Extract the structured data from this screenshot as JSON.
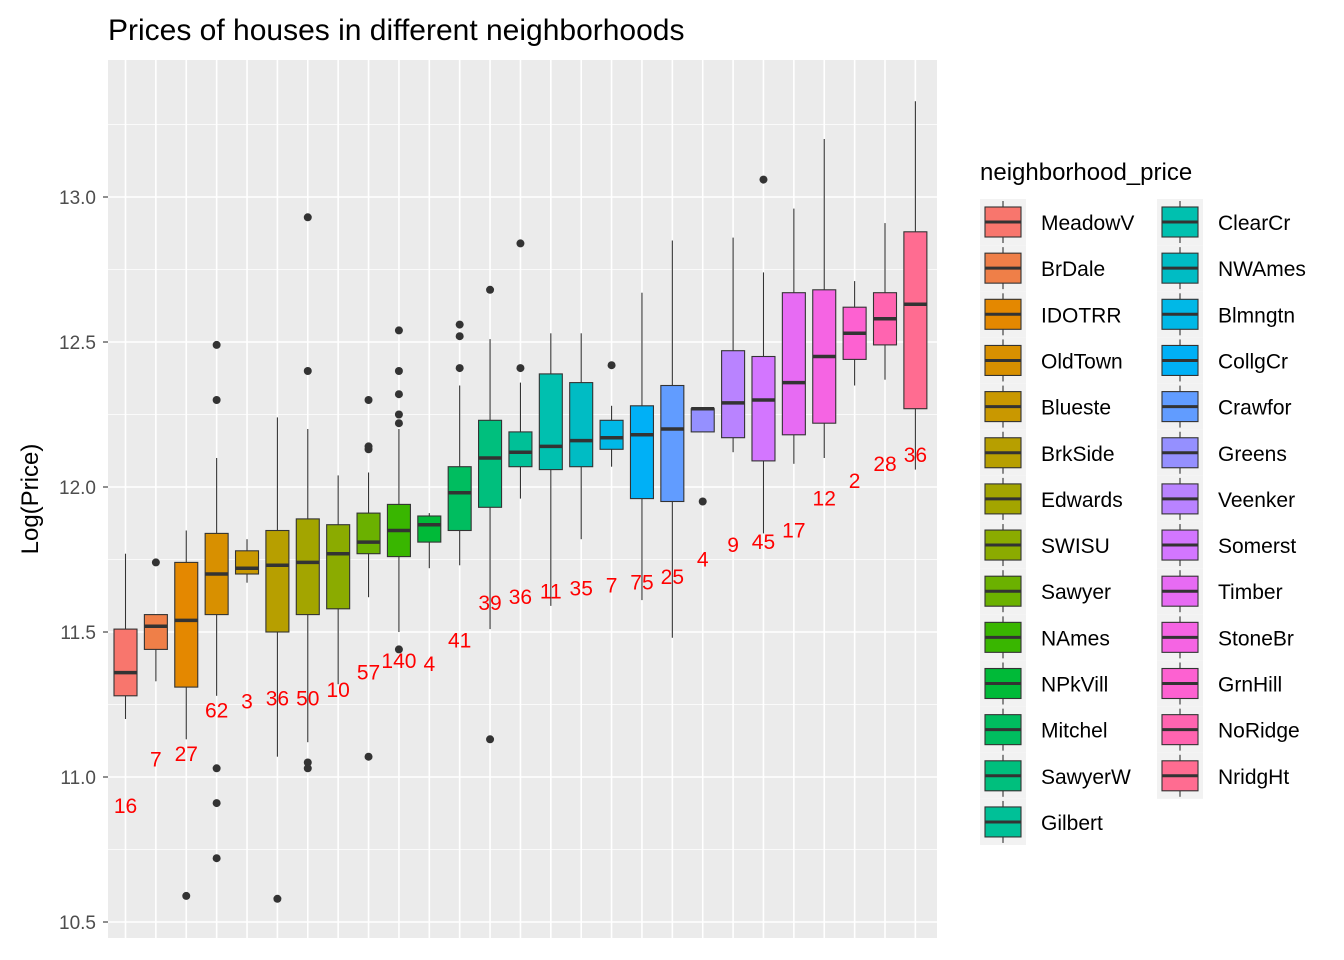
{
  "chart_data": {
    "type": "boxplot",
    "title": "Prices of houses in different neighborhoods",
    "xlabel": "",
    "ylabel": "Log(Price)",
    "ylim": [
      10.47,
      13.45
    ],
    "yticks": [
      "10.5",
      "11.0",
      "11.5",
      "12.0",
      "12.5",
      "13.0"
    ],
    "grid": true,
    "legend": {
      "title": "neighborhood_price",
      "position": "right",
      "columns": 2
    },
    "categories": [
      {
        "name": "MeadowV",
        "color": "#F8766D",
        "count": "16",
        "q1": 11.28,
        "median": 11.36,
        "q3": 11.51,
        "lower": 11.2,
        "upper": 11.77,
        "outliers": []
      },
      {
        "name": "BrDale",
        "color": "#EF7F48",
        "count": "7",
        "q1": 11.44,
        "median": 11.52,
        "q3": 11.56,
        "lower": 11.33,
        "upper": 11.56,
        "outliers": [
          11.74
        ]
      },
      {
        "name": "IDOTRR",
        "color": "#E48800",
        "count": "27",
        "q1": 11.31,
        "median": 11.54,
        "q3": 11.74,
        "lower": 11.13,
        "upper": 11.85,
        "outliers": [
          10.59
        ]
      },
      {
        "name": "OldTown",
        "color": "#D89000",
        "count": "62",
        "q1": 11.56,
        "median": 11.7,
        "q3": 11.84,
        "lower": 11.28,
        "upper": 12.1,
        "outliers": [
          12.49,
          12.3,
          11.03,
          10.91,
          10.72
        ]
      },
      {
        "name": "Blueste",
        "color": "#C99800",
        "count": "3",
        "q1": 11.7,
        "median": 11.72,
        "q3": 11.78,
        "lower": 11.67,
        "upper": 11.82,
        "outliers": []
      },
      {
        "name": "BrkSide",
        "color": "#B79F00",
        "count": "36",
        "q1": 11.5,
        "median": 11.73,
        "q3": 11.85,
        "lower": 11.07,
        "upper": 12.24,
        "outliers": [
          10.58
        ]
      },
      {
        "name": "Edwards",
        "color": "#A3A500",
        "count": "50",
        "q1": 11.56,
        "median": 11.74,
        "q3": 11.89,
        "lower": 11.12,
        "upper": 12.2,
        "outliers": [
          12.93,
          12.4,
          11.05,
          11.03
        ]
      },
      {
        "name": "SWISU",
        "color": "#8BAB00",
        "count": "10",
        "q1": 11.58,
        "median": 11.77,
        "q3": 11.87,
        "lower": 11.32,
        "upper": 12.04,
        "outliers": []
      },
      {
        "name": "Sawyer",
        "color": "#6BB100",
        "count": "57",
        "q1": 11.77,
        "median": 11.81,
        "q3": 11.91,
        "lower": 11.62,
        "upper": 12.05,
        "outliers": [
          12.3,
          12.14,
          12.13,
          11.07
        ]
      },
      {
        "name": "NAmes",
        "color": "#39B600",
        "count": "140",
        "q1": 11.76,
        "median": 11.85,
        "q3": 11.94,
        "lower": 11.5,
        "upper": 12.2,
        "outliers": [
          12.54,
          12.4,
          12.32,
          12.25,
          12.22,
          11.44
        ]
      },
      {
        "name": "NPkVill",
        "color": "#00BA38",
        "count": "4",
        "q1": 11.81,
        "median": 11.87,
        "q3": 11.9,
        "lower": 11.72,
        "upper": 11.91,
        "outliers": []
      },
      {
        "name": "Mitchel",
        "color": "#00BD5F",
        "count": "41",
        "q1": 11.85,
        "median": 11.98,
        "q3": 12.07,
        "lower": 11.73,
        "upper": 12.35,
        "outliers": [
          12.56,
          12.52,
          12.41
        ]
      },
      {
        "name": "SawyerW",
        "color": "#00BF7D",
        "count": "39",
        "q1": 11.93,
        "median": 12.1,
        "q3": 12.23,
        "lower": 11.51,
        "upper": 12.51,
        "outliers": [
          12.68,
          11.13
        ]
      },
      {
        "name": "Gilbert",
        "color": "#00C097",
        "count": "36",
        "q1": 12.07,
        "median": 12.12,
        "q3": 12.19,
        "lower": 11.96,
        "upper": 12.36,
        "outliers": [
          12.84,
          12.41
        ]
      },
      {
        "name": "ClearCr",
        "color": "#00C0AF",
        "count": "11",
        "q1": 12.06,
        "median": 12.14,
        "q3": 12.39,
        "lower": 11.59,
        "upper": 12.53,
        "outliers": []
      },
      {
        "name": "NWAmes",
        "color": "#00BCC4",
        "count": "35",
        "q1": 12.07,
        "median": 12.16,
        "q3": 12.36,
        "lower": 11.82,
        "upper": 12.53,
        "outliers": []
      },
      {
        "name": "Blmngtn",
        "color": "#00B8E7",
        "count": "7",
        "q1": 12.13,
        "median": 12.17,
        "q3": 12.23,
        "lower": 12.07,
        "upper": 12.28,
        "outliers": [
          12.42
        ]
      },
      {
        "name": "CollgCr",
        "color": "#00B0F6",
        "count": "75",
        "q1": 11.96,
        "median": 12.18,
        "q3": 12.28,
        "lower": 11.61,
        "upper": 12.67,
        "outliers": []
      },
      {
        "name": "Crawfor",
        "color": "#619CFF",
        "count": "25",
        "q1": 11.95,
        "median": 12.2,
        "q3": 12.35,
        "lower": 11.48,
        "upper": 12.85,
        "outliers": []
      },
      {
        "name": "Greens",
        "color": "#9590FF",
        "count": "4",
        "q1": 12.19,
        "median": 12.27,
        "q3": 12.27,
        "lower": 12.19,
        "upper": 12.27,
        "outliers": [
          11.95
        ]
      },
      {
        "name": "Veenker",
        "color": "#B983FF",
        "count": "9",
        "q1": 12.17,
        "median": 12.29,
        "q3": 12.47,
        "lower": 12.12,
        "upper": 12.86,
        "outliers": []
      },
      {
        "name": "Somerst",
        "color": "#D376FF",
        "count": "45",
        "q1": 12.09,
        "median": 12.3,
        "q3": 12.45,
        "lower": 11.84,
        "upper": 12.74,
        "outliers": [
          13.06
        ]
      },
      {
        "name": "Timber",
        "color": "#E76BF3",
        "count": "17",
        "q1": 12.18,
        "median": 12.36,
        "q3": 12.67,
        "lower": 12.08,
        "upper": 12.96,
        "outliers": []
      },
      {
        "name": "StoneBr",
        "color": "#F564E3",
        "count": "12",
        "q1": 12.22,
        "median": 12.45,
        "q3": 12.68,
        "lower": 12.1,
        "upper": 13.2,
        "outliers": []
      },
      {
        "name": "GrnHill",
        "color": "#FD61D1",
        "count": "2",
        "q1": 12.44,
        "median": 12.53,
        "q3": 12.62,
        "lower": 12.35,
        "upper": 12.71,
        "outliers": []
      },
      {
        "name": "NoRidge",
        "color": "#FF64B0",
        "count": "28",
        "q1": 12.49,
        "median": 12.58,
        "q3": 12.67,
        "lower": 12.37,
        "upper": 12.91,
        "outliers": []
      },
      {
        "name": "NridgHt",
        "color": "#FF6C91",
        "count": "36",
        "q1": 12.27,
        "median": 12.63,
        "q3": 12.88,
        "lower": 12.06,
        "upper": 13.33,
        "outliers": []
      }
    ],
    "label_y": [
      10.9,
      11.06,
      11.08,
      11.23,
      11.26,
      11.27,
      11.27,
      11.3,
      11.36,
      11.4,
      11.39,
      11.47,
      11.6,
      11.62,
      11.64,
      11.65,
      11.66,
      11.67,
      11.69,
      11.75,
      11.8,
      11.81,
      11.85,
      11.96,
      12.02,
      12.08,
      12.11
    ]
  }
}
